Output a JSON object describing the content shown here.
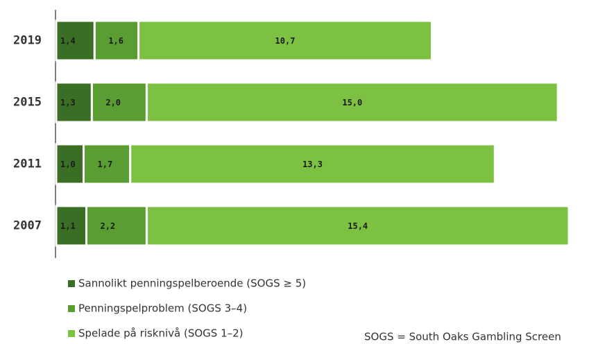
{
  "chart_data": {
    "type": "stacked-bar-horizontal",
    "categories": [
      "2019",
      "2015",
      "2011",
      "2007"
    ],
    "series": [
      {
        "name": "Sannolikt penningspelberoende (SOGS ≥ 5)",
        "color": "#3b6e25",
        "values": [
          1.4,
          1.3,
          1.0,
          1.1
        ],
        "value_labels": [
          "1,4",
          "1,3",
          "1,0",
          "1,1"
        ]
      },
      {
        "name": "Penningspelproblem (SOGS 3–4)",
        "color": "#5a9e33",
        "values": [
          1.6,
          2.0,
          1.7,
          2.2
        ],
        "value_labels": [
          "1,6",
          "2,0",
          "1,7",
          "2,2"
        ]
      },
      {
        "name": "Spelade på risknivå (SOGS 1–2)",
        "color": "#7dc143",
        "values": [
          10.7,
          15.0,
          13.3,
          15.4
        ],
        "value_labels": [
          "10,7",
          "15,0",
          "13,3",
          "15,4"
        ]
      }
    ],
    "annotation": "SOGS = South Oaks Gambling Screen"
  }
}
